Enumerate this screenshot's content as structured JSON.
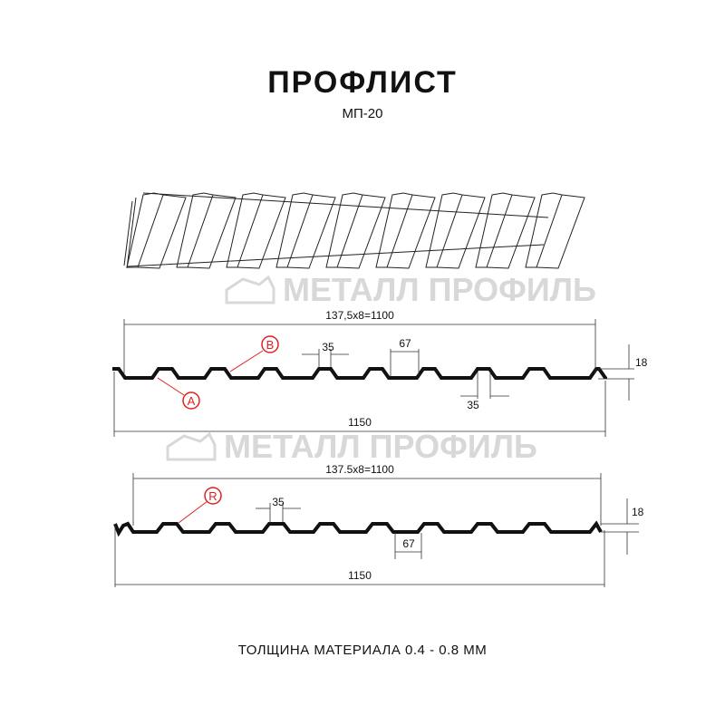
{
  "header": {
    "title": "ПРОФЛИСТ",
    "subtitle": "МП-20"
  },
  "watermark": {
    "text": "МЕТАЛЛ ПРОФИЛЬ",
    "color": "#d8d8d8"
  },
  "profile_1": {
    "pitch_label": "137,5x8=1100",
    "width_label": "1150",
    "rib_top_label": "35",
    "rib_bottom_label": "35",
    "rib_pitch_label": "67",
    "height_label": "18",
    "marker_a": "A",
    "marker_b": "B"
  },
  "profile_2": {
    "pitch_label": "137.5x8=1100",
    "width_label": "1150",
    "rib_top_label": "35",
    "rib_pitch_label": "67",
    "height_label": "18",
    "marker_r": "R"
  },
  "footer": {
    "thickness": "ТОЛЩИНА МАТЕРИАЛА 0.4 - 0.8 ММ"
  },
  "colors": {
    "profile": "#111111",
    "marker": "#e02020",
    "dimension": "#333333"
  }
}
